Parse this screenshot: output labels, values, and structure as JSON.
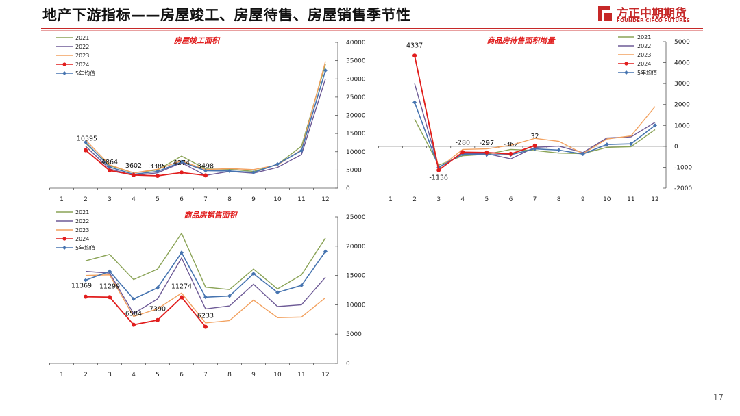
{
  "page": {
    "title": "地产下游指标——房屋竣工、房屋待售、房屋销售季节性",
    "page_number": "17"
  },
  "logo": {
    "cn": "方正中期期货",
    "en": "FOUNDER CIFCO FUTURES",
    "color": "#c62828"
  },
  "colors": {
    "2021": "#8aa356",
    "2022": "#6d5a96",
    "2023": "#f2a15f",
    "2024": "#e11d1d",
    "5年均值": "#4674b0"
  },
  "chart_data": [
    {
      "type": "line",
      "title": "房屋竣工面积",
      "categories": [
        "1",
        "2",
        "3",
        "4",
        "5",
        "6",
        "7",
        "8",
        "9",
        "10",
        "11",
        "12"
      ],
      "ylim": [
        0,
        40000
      ],
      "yticks": [
        0,
        5000,
        10000,
        15000,
        20000,
        25000,
        30000,
        35000,
        40000
      ],
      "y_axis_side": "right",
      "legend": "top-left",
      "series": [
        {
          "name": "2021",
          "values": [
            null,
            12300,
            6200,
            4200,
            5000,
            8800,
            5300,
            5200,
            4600,
            6500,
            11500,
            34000
          ]
        },
        {
          "name": "2022",
          "values": [
            null,
            11500,
            5300,
            3500,
            4200,
            7000,
            3500,
            4600,
            4100,
            5700,
            9200,
            30000
          ]
        },
        {
          "name": "2023",
          "values": [
            null,
            13200,
            6400,
            4200,
            5200,
            7500,
            5100,
            5400,
            5100,
            6400,
            10500,
            34800
          ]
        },
        {
          "name": "2024",
          "values": [
            null,
            10395,
            4864,
            3602,
            3385,
            4274,
            3498,
            null,
            null,
            null,
            null,
            null
          ]
        },
        {
          "name": "5年均值",
          "values": [
            null,
            12600,
            5800,
            3800,
            4600,
            7200,
            4800,
            4700,
            4300,
            6600,
            10300,
            32300
          ]
        }
      ],
      "data_labels": [
        {
          "x": "2",
          "text": "10395"
        },
        {
          "x": "3",
          "text": "4864"
        },
        {
          "x": "4",
          "text": "3602"
        },
        {
          "x": "5",
          "text": "3385"
        },
        {
          "x": "6",
          "text": "4274"
        },
        {
          "x": "7",
          "text": "3498"
        }
      ]
    },
    {
      "type": "line",
      "title": "商品房待售面积增量",
      "categories": [
        "1",
        "2",
        "3",
        "4",
        "5",
        "6",
        "7",
        "8",
        "9",
        "10",
        "11",
        "12"
      ],
      "ylim": [
        -2000,
        5000
      ],
      "yticks": [
        -2000,
        -1000,
        0,
        1000,
        2000,
        3000,
        4000,
        5000
      ],
      "y_axis_side": "right",
      "legend": "top-right",
      "series": [
        {
          "name": "2021",
          "values": [
            null,
            1300,
            -900,
            -450,
            -380,
            -150,
            -200,
            -320,
            -350,
            -50,
            -20,
            800
          ]
        },
        {
          "name": "2022",
          "values": [
            null,
            3000,
            -1000,
            -350,
            -350,
            -600,
            -50,
            10,
            -300,
            400,
            450,
            1150
          ]
        },
        {
          "name": "2023",
          "values": [
            null,
            4350,
            -1050,
            -150,
            -120,
            50,
            380,
            240,
            -350,
            350,
            500,
            1900
          ]
        },
        {
          "name": "2024",
          "values": [
            null,
            4337,
            -1136,
            -280,
            -297,
            -362,
            32,
            null,
            null,
            null,
            null,
            null
          ]
        },
        {
          "name": "5年均值",
          "values": [
            null,
            2100,
            -1000,
            -380,
            -400,
            -400,
            -120,
            -180,
            -370,
            90,
            120,
            1000
          ]
        }
      ],
      "data_labels": [
        {
          "x": "2",
          "text": "4337"
        },
        {
          "x": "3",
          "text": "-1136"
        },
        {
          "x": "4",
          "text": "-280"
        },
        {
          "x": "5",
          "text": "-297"
        },
        {
          "x": "6",
          "text": "-362"
        },
        {
          "x": "7",
          "text": "32"
        }
      ]
    },
    {
      "type": "line",
      "title": "商品房销售面积",
      "categories": [
        "1",
        "2",
        "3",
        "4",
        "5",
        "6",
        "7",
        "8",
        "9",
        "10",
        "11",
        "12"
      ],
      "ylim": [
        0,
        25000
      ],
      "yticks": [
        0,
        5000,
        10000,
        15000,
        20000,
        25000
      ],
      "y_axis_side": "right",
      "legend": "top-left",
      "series": [
        {
          "name": "2021",
          "values": [
            null,
            17500,
            18600,
            14300,
            16100,
            22200,
            13000,
            12600,
            16100,
            12700,
            15100,
            21400
          ]
        },
        {
          "name": "2022",
          "values": [
            null,
            15700,
            15400,
            8500,
            11000,
            18000,
            9300,
            9800,
            13500,
            9700,
            10000,
            14700
          ]
        },
        {
          "name": "2023",
          "values": [
            null,
            15000,
            15100,
            8000,
            9300,
            12000,
            6900,
            7300,
            10800,
            7800,
            7900,
            11200
          ]
        },
        {
          "name": "2024",
          "values": [
            null,
            11369,
            11299,
            6584,
            7390,
            11274,
            6233,
            null,
            null,
            null,
            null,
            null
          ]
        },
        {
          "name": "5年均值",
          "values": [
            null,
            14200,
            15700,
            11000,
            12900,
            18900,
            11300,
            11500,
            15300,
            12100,
            13300,
            19100
          ]
        }
      ],
      "data_labels": [
        {
          "x": "2",
          "text": "11369"
        },
        {
          "x": "3",
          "text": "11299"
        },
        {
          "x": "4",
          "text": "6584"
        },
        {
          "x": "5",
          "text": "7390"
        },
        {
          "x": "6",
          "text": "11274"
        },
        {
          "x": "7",
          "text": "6233"
        }
      ]
    }
  ]
}
